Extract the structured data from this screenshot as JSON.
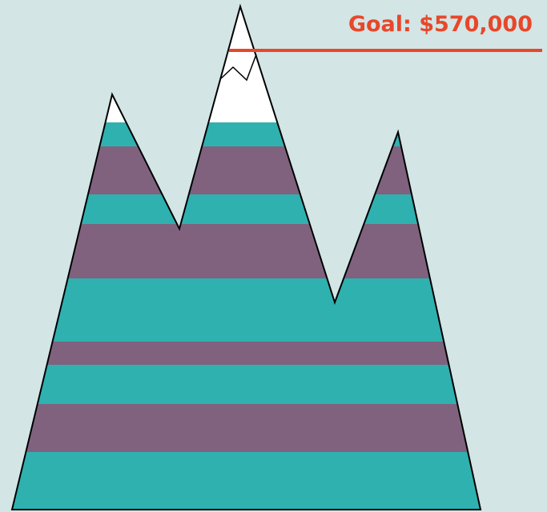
{
  "goal": {
    "label": "Goal: $570,000"
  }
}
